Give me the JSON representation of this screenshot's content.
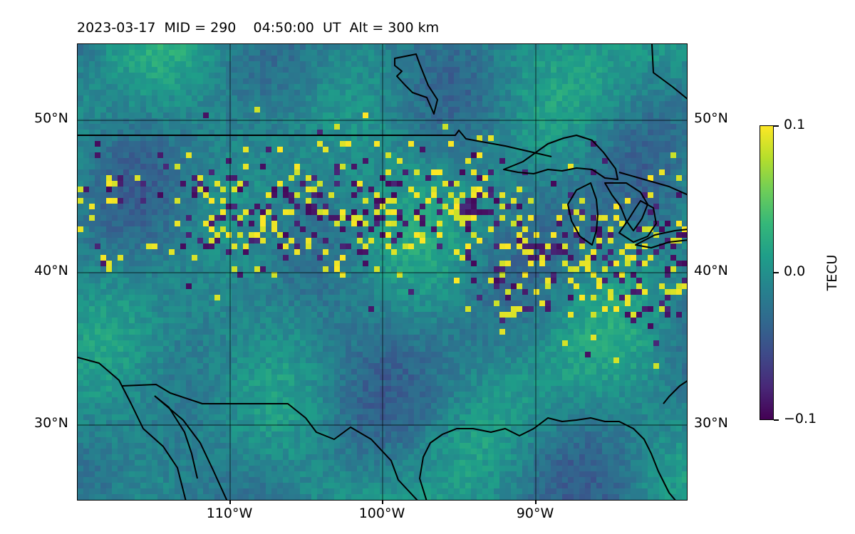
{
  "title": "2023-03-17  MID = 290    04:50:00  UT  Alt = 300 km",
  "map": {
    "region": "North America (central / eastern US, northern Mexico, southern Canada)",
    "projection": "plate carree",
    "lon_range": [
      -120,
      -80
    ],
    "lat_range": [
      25,
      55
    ],
    "gridlines_lon": [
      -110,
      -100,
      -90
    ],
    "gridlines_lat": [
      30,
      40,
      50
    ],
    "lat_labels": [
      "50°N",
      "40°N",
      "30°N"
    ],
    "lon_labels": [
      "110°W",
      "100°W",
      "90°W"
    ],
    "coastlines": true,
    "borders": true,
    "data_field": "detrended TEC",
    "cell_size_deg": 0.4
  },
  "colorbar": {
    "label": "TECU",
    "colormap": "viridis",
    "vmin": -0.1,
    "vmax": 0.1,
    "ticks": [
      "0.1",
      "0.0",
      "−0.1"
    ]
  },
  "colors": {
    "background": "#2f7f8c",
    "frame": "#000000"
  }
}
